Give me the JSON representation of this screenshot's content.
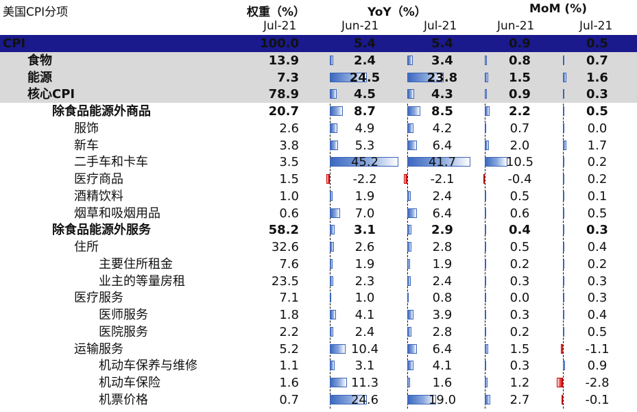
{
  "header": {
    "title": "美国CPI分项",
    "weight_label": "权重（%）",
    "yoy_label": "YoY（%）",
    "mom_label": "MoM (%)",
    "weight_period": "Jul-21",
    "yoy_periods": [
      "Jun-21",
      "Jul-21"
    ],
    "mom_periods": [
      "Jun-21",
      "Jul-21"
    ]
  },
  "colors": {
    "cpi_band": "#1a1a8c",
    "gray_band": "#d9d9d9",
    "positive_bar": "#3c68c0",
    "negative_bar": "#e00000"
  },
  "chart_data": {
    "type": "table",
    "title": "美国CPI分项",
    "columns": [
      "权重（%） Jul-21",
      "YoY（%） Jun-21",
      "YoY（%） Jul-21",
      "MoM (%) Jun-21",
      "MoM (%) Jul-21"
    ],
    "yoy_bar_range": [
      -2.2,
      45.2
    ],
    "mom_bar_range": [
      -2.8,
      10.5
    ],
    "rows": [
      {
        "label": "CPI",
        "level": 0,
        "style": "cpi",
        "weight": "100.0",
        "yoy_jun": "5.4",
        "yoy_jul": "5.4",
        "mom_jun": "0.9",
        "mom_jul": "0.5"
      },
      {
        "label": "食物",
        "level": 1,
        "style": "gray",
        "weight": "13.9",
        "yoy_jun": "2.4",
        "yoy_jul": "3.4",
        "mom_jun": "0.8",
        "mom_jul": "0.7"
      },
      {
        "label": "能源",
        "level": 1,
        "style": "gray",
        "weight": "7.3",
        "yoy_jun": "24.5",
        "yoy_jul": "23.8",
        "mom_jun": "1.5",
        "mom_jul": "1.6"
      },
      {
        "label": "核心CPI",
        "level": 1,
        "style": "gray",
        "weight": "78.9",
        "yoy_jun": "4.5",
        "yoy_jul": "4.3",
        "mom_jun": "0.9",
        "mom_jul": "0.3"
      },
      {
        "label": "除食品能源外商品",
        "level": 2,
        "style": "bold",
        "weight": "20.7",
        "yoy_jun": "8.7",
        "yoy_jul": "8.5",
        "mom_jun": "2.2",
        "mom_jul": "0.5"
      },
      {
        "label": "服饰",
        "level": 3,
        "style": "normal",
        "weight": "2.6",
        "yoy_jun": "4.9",
        "yoy_jul": "4.2",
        "mom_jun": "0.7",
        "mom_jul": "0.0"
      },
      {
        "label": "新车",
        "level": 3,
        "style": "normal",
        "weight": "3.8",
        "yoy_jun": "5.3",
        "yoy_jul": "6.4",
        "mom_jun": "2.0",
        "mom_jul": "1.7"
      },
      {
        "label": "二手车和卡车",
        "level": 3,
        "style": "normal",
        "weight": "3.5",
        "yoy_jun": "45.2",
        "yoy_jul": "41.7",
        "mom_jun": "10.5",
        "mom_jul": "0.2"
      },
      {
        "label": "医疗商品",
        "level": 3,
        "style": "normal",
        "weight": "1.5",
        "yoy_jun": "-2.2",
        "yoy_jul": "-2.1",
        "mom_jun": "-0.4",
        "mom_jul": "0.2"
      },
      {
        "label": "酒精饮料",
        "level": 3,
        "style": "normal",
        "weight": "1.0",
        "yoy_jun": "1.9",
        "yoy_jul": "2.4",
        "mom_jun": "0.5",
        "mom_jul": "0.1"
      },
      {
        "label": "烟草和吸烟用品",
        "level": 3,
        "style": "normal",
        "weight": "0.6",
        "yoy_jun": "7.0",
        "yoy_jul": "6.4",
        "mom_jun": "0.6",
        "mom_jul": "0.5"
      },
      {
        "label": "除食品能源外服务",
        "level": 2,
        "style": "bold",
        "weight": "58.2",
        "yoy_jun": "3.1",
        "yoy_jul": "2.9",
        "mom_jun": "0.4",
        "mom_jul": "0.3"
      },
      {
        "label": "住所",
        "level": 3,
        "style": "normal",
        "weight": "32.6",
        "yoy_jun": "2.6",
        "yoy_jul": "2.8",
        "mom_jun": "0.5",
        "mom_jul": "0.4"
      },
      {
        "label": "主要住所租金",
        "level": 4,
        "style": "normal",
        "weight": "7.6",
        "yoy_jun": "1.9",
        "yoy_jul": "1.9",
        "mom_jun": "0.2",
        "mom_jul": "0.2"
      },
      {
        "label": "业主的等量房租",
        "level": 4,
        "style": "normal",
        "weight": "23.5",
        "yoy_jun": "2.3",
        "yoy_jul": "2.4",
        "mom_jun": "0.3",
        "mom_jul": "0.3"
      },
      {
        "label": "医疗服务",
        "level": 3,
        "style": "normal",
        "weight": "7.1",
        "yoy_jun": "1.0",
        "yoy_jul": "0.8",
        "mom_jun": "0.0",
        "mom_jul": "0.3"
      },
      {
        "label": "医师服务",
        "level": 4,
        "style": "normal",
        "weight": "1.8",
        "yoy_jun": "4.1",
        "yoy_jul": "3.9",
        "mom_jun": "0.3",
        "mom_jul": "0.4"
      },
      {
        "label": "医院服务",
        "level": 4,
        "style": "normal",
        "weight": "2.2",
        "yoy_jun": "2.4",
        "yoy_jul": "2.8",
        "mom_jun": "0.2",
        "mom_jul": "0.5"
      },
      {
        "label": "运输服务",
        "level": 3,
        "style": "normal",
        "weight": "5.2",
        "yoy_jun": "10.4",
        "yoy_jul": "6.4",
        "mom_jun": "1.5",
        "mom_jul": "-1.1"
      },
      {
        "label": "机动车保养与维修",
        "level": 4,
        "style": "normal",
        "weight": "1.1",
        "yoy_jun": "3.1",
        "yoy_jul": "4.1",
        "mom_jun": "0.3",
        "mom_jul": "0.9"
      },
      {
        "label": "机动车保险",
        "level": 4,
        "style": "normal",
        "weight": "1.6",
        "yoy_jun": "11.3",
        "yoy_jul": "1.6",
        "mom_jun": "1.2",
        "mom_jul": "-2.8"
      },
      {
        "label": "机票价格",
        "level": 4,
        "style": "normal",
        "weight": "0.7",
        "yoy_jun": "24.6",
        "yoy_jul": "19.0",
        "mom_jun": "2.7",
        "mom_jul": "-0.1"
      }
    ]
  }
}
